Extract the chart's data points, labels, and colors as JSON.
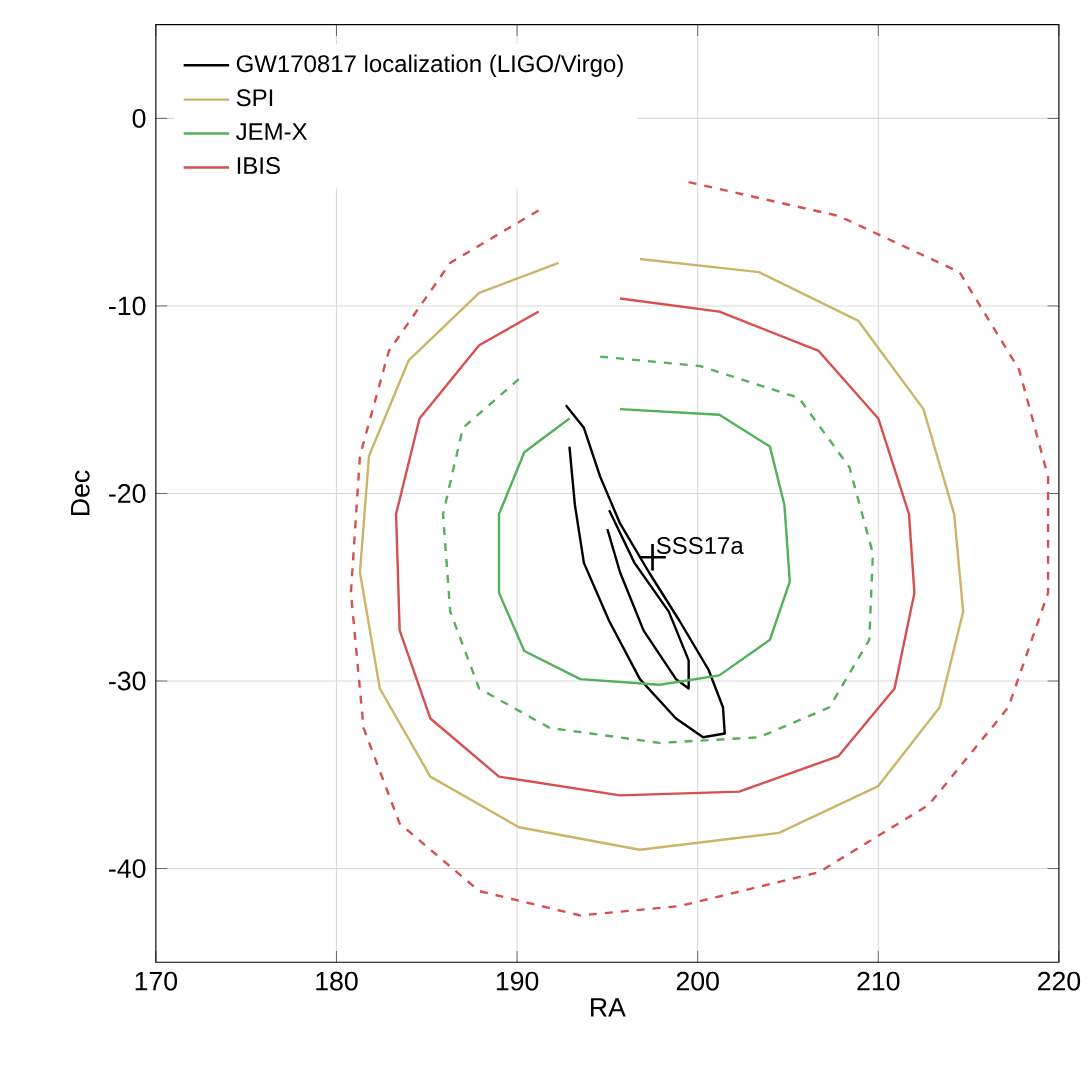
{
  "chart_data": {
    "type": "line",
    "xlabel": "RA",
    "ylabel": "Dec",
    "xlim": [
      170,
      220
    ],
    "ylim": [
      -45,
      5
    ],
    "xticks": [
      170,
      180,
      190,
      200,
      210,
      220
    ],
    "yticks": [
      -40,
      -30,
      -20,
      -10,
      0
    ],
    "grid": true,
    "legend": "top left",
    "marker": "none",
    "annotations": [
      {
        "text": "SSS17a",
        "x": 197.5,
        "y": -23.4
      }
    ],
    "series": [
      {
        "name": "GW170817 localization (LIGO/Virgo)",
        "color": "#000000",
        "line_style": "solid",
        "x": [
          192.7,
          193.7,
          194.6,
          195.7,
          197.3,
          199.0,
          200.6,
          201.4,
          201.5,
          200.3,
          198.8,
          196.8,
          195.1,
          193.7,
          193.2,
          192.9
        ],
        "values": [
          -15.3,
          -16.5,
          -19.1,
          -21.6,
          -24.2,
          -26.8,
          -29.4,
          -31.4,
          -32.8,
          -33.0,
          -32.0,
          -29.9,
          -26.8,
          -23.7,
          -20.6,
          -17.5
        ]
      },
      {
        "color": "#000000",
        "line_style": "solid",
        "x": [
          195.1,
          196.5,
          198.4,
          199.5,
          199.5,
          198.8,
          197.0,
          195.7,
          195.0
        ],
        "values": [
          -20.9,
          -23.7,
          -26.3,
          -28.9,
          -30.4,
          -29.9,
          -27.3,
          -24.2,
          -21.9
        ]
      },
      {
        "name": "SPI",
        "color": "#cdb46a",
        "line_style": "solid",
        "x": [
          196.8,
          203.4,
          208.9,
          212.5,
          214.2,
          214.7,
          213.4,
          210.0,
          204.5,
          196.8,
          190.1,
          185.2,
          182.4,
          181.3,
          181.8,
          184.0,
          187.9,
          192.3
        ],
        "values": [
          -7.5,
          -8.2,
          -10.8,
          -15.5,
          -21.1,
          -26.3,
          -31.4,
          -35.6,
          -38.1,
          -39.0,
          -37.8,
          -35.1,
          -30.4,
          -24.2,
          -18.0,
          -12.9,
          -9.3,
          -7.7
        ]
      },
      {
        "name": "JEM-X",
        "color": "#55b05a",
        "line_style": "solid",
        "x": [
          195.7,
          201.2,
          204.0,
          204.8,
          205.1,
          204.0,
          201.2,
          197.9,
          193.5,
          190.4,
          189.0,
          189.0,
          190.4,
          192.9
        ],
        "values": [
          -15.5,
          -15.8,
          -17.5,
          -20.6,
          -24.7,
          -27.8,
          -29.7,
          -30.2,
          -29.9,
          -28.4,
          -25.3,
          -21.1,
          -17.8,
          -16.0
        ]
      },
      {
        "color": "#55b05a",
        "line_style": "dashed",
        "x": [
          194.6,
          200.1,
          205.6,
          208.4,
          209.7,
          209.5,
          207.3,
          203.4,
          197.9,
          191.8,
          187.9,
          186.3,
          185.9,
          187.0,
          190.1
        ],
        "values": [
          -12.7,
          -13.2,
          -14.9,
          -18.6,
          -23.2,
          -27.8,
          -31.4,
          -33.0,
          -33.3,
          -32.5,
          -30.4,
          -26.3,
          -21.1,
          -16.5,
          -13.9
        ]
      },
      {
        "name": "IBIS",
        "color": "#d65050",
        "line_style": "solid",
        "x": [
          195.7,
          201.2,
          206.7,
          210.0,
          211.7,
          212.0,
          210.9,
          207.8,
          202.3,
          195.7,
          189.0,
          185.2,
          183.5,
          183.3,
          184.6,
          187.9,
          191.2
        ],
        "values": [
          -9.6,
          -10.3,
          -12.4,
          -16.0,
          -21.1,
          -25.3,
          -30.4,
          -34.0,
          -35.9,
          -36.1,
          -35.1,
          -32.0,
          -27.3,
          -21.1,
          -16.0,
          -12.1,
          -10.3
        ]
      },
      {
        "color": "#d65050",
        "line_style": "dashed",
        "x": [
          199.5,
          207.8,
          214.5,
          217.8,
          219.4,
          219.4,
          217.2,
          212.8,
          206.7,
          199.0,
          193.5,
          187.9,
          183.5,
          181.5,
          180.8,
          181.3,
          182.9,
          186.3,
          191.2
        ],
        "values": [
          -3.4,
          -5.2,
          -8.2,
          -13.4,
          -19.1,
          -25.3,
          -31.4,
          -36.6,
          -40.2,
          -42.0,
          -42.5,
          -41.2,
          -37.6,
          -32.5,
          -25.3,
          -18.0,
          -12.4,
          -7.7,
          -4.9
        ]
      },
      {
        "type": "scatter",
        "color": "#000000",
        "marker": "cross",
        "x": [
          197.5
        ],
        "values": [
          -23.4
        ]
      }
    ]
  }
}
